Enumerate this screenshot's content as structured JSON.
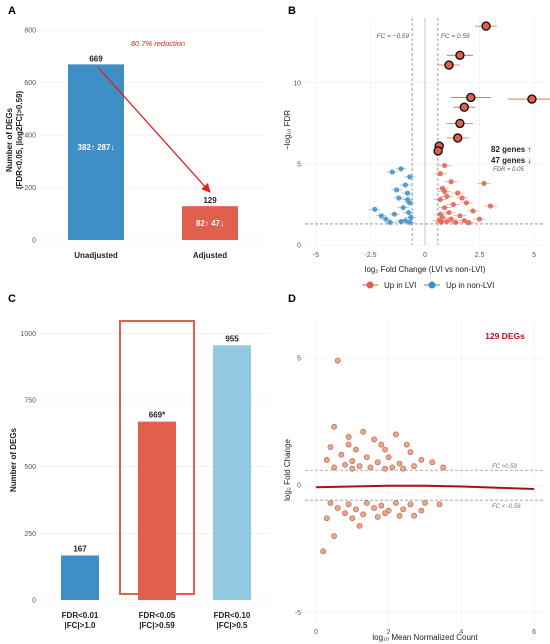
{
  "chart_data": [
    {
      "panel": "A",
      "type": "bar",
      "ylabel": "Number of DEGs",
      "ylabel2": "(FDR<0.05, |log2FC|>0.59)",
      "ylim": [
        0,
        800
      ],
      "yticks": [
        "0",
        "200",
        "400",
        "600",
        "800"
      ],
      "categories": [
        "Unadjusted",
        "Adjusted"
      ],
      "values": [
        669,
        129
      ],
      "value_labels": [
        "669",
        "129"
      ],
      "split_labels": [
        "382↑ 287↓",
        "82↑ 47↓"
      ],
      "colors": [
        "#3f8fc6",
        "#e0604d"
      ],
      "annotation": "80.7% reduction",
      "grid": true
    },
    {
      "panel": "B",
      "type": "scatter",
      "xlabel": "log₂ Fold Change (LVI vs non-LVI)",
      "ylabel": "−log₁₀ FDR",
      "xlim": [
        -5.5,
        5.5
      ],
      "ylim": [
        0,
        14
      ],
      "xticks": [
        "-5",
        "-2.5",
        "0",
        "2.5",
        "5"
      ],
      "yticks": [
        "0",
        "5",
        "10"
      ],
      "fc_label_left": "FC = −0.59",
      "fc_label_right": "FC = 0.59",
      "fdr_label": "FDR = 0.05",
      "up_count": "82 genes ↑",
      "down_count": "47 genes ↓",
      "legend": [
        "Up in LVI",
        "Up in non-LVI"
      ],
      "legend_position": "bottom",
      "colors": {
        "up": "#e0604d",
        "down": "#3f8fc6"
      },
      "top_points": [
        {
          "x": 2.8,
          "y": 13.5,
          "xerr": 0.5
        },
        {
          "x": 1.6,
          "y": 11.7,
          "xerr": 0.6
        },
        {
          "x": 1.1,
          "y": 11.1,
          "xerr": 0.5
        },
        {
          "x": 4.9,
          "y": 9.0,
          "xerr": 1.1
        },
        {
          "x": 2.1,
          "y": 9.1,
          "xerr": 0.9
        },
        {
          "x": 1.8,
          "y": 8.5,
          "xerr": 0.5
        },
        {
          "x": 1.6,
          "y": 7.5,
          "xerr": 0.6
        },
        {
          "x": 1.5,
          "y": 6.6,
          "xerr": 0.5
        },
        {
          "x": 0.65,
          "y": 6.1,
          "xerr": 0.2
        },
        {
          "x": 0.6,
          "y": 5.8,
          "xerr": 0.2
        }
      ],
      "up_points": [
        {
          "x": 2.7,
          "y": 3.8
        },
        {
          "x": 0.9,
          "y": 4.9
        },
        {
          "x": 0.7,
          "y": 4.4
        },
        {
          "x": 1.2,
          "y": 3.9
        },
        {
          "x": 0.8,
          "y": 3.5
        },
        {
          "x": 1.5,
          "y": 3.2
        },
        {
          "x": 1.0,
          "y": 3.0
        },
        {
          "x": 0.7,
          "y": 2.8
        },
        {
          "x": 1.9,
          "y": 2.6
        },
        {
          "x": 1.3,
          "y": 2.5
        },
        {
          "x": 0.9,
          "y": 2.3
        },
        {
          "x": 2.2,
          "y": 2.1
        },
        {
          "x": 1.1,
          "y": 2.0
        },
        {
          "x": 0.7,
          "y": 1.9
        },
        {
          "x": 1.6,
          "y": 1.8
        },
        {
          "x": 0.8,
          "y": 1.7
        },
        {
          "x": 2.5,
          "y": 1.6
        },
        {
          "x": 1.2,
          "y": 1.6
        },
        {
          "x": 0.65,
          "y": 1.5
        },
        {
          "x": 1.8,
          "y": 1.5
        },
        {
          "x": 1.0,
          "y": 1.45
        },
        {
          "x": 1.4,
          "y": 1.4
        },
        {
          "x": 0.75,
          "y": 1.4
        },
        {
          "x": 2.0,
          "y": 1.38
        },
        {
          "x": 3.0,
          "y": 2.4
        },
        {
          "x": 0.9,
          "y": 3.3
        },
        {
          "x": 1.7,
          "y": 2.9
        }
      ],
      "down_points": [
        {
          "x": -1.1,
          "y": 4.7
        },
        {
          "x": -0.7,
          "y": 4.2
        },
        {
          "x": -1.5,
          "y": 4.5
        },
        {
          "x": -0.9,
          "y": 3.7
        },
        {
          "x": -0.8,
          "y": 3.2
        },
        {
          "x": -1.2,
          "y": 2.9
        },
        {
          "x": -0.7,
          "y": 2.6
        },
        {
          "x": -1.0,
          "y": 2.3
        },
        {
          "x": -2.3,
          "y": 2.2
        },
        {
          "x": -0.75,
          "y": 2.0
        },
        {
          "x": -1.4,
          "y": 1.9
        },
        {
          "x": -0.65,
          "y": 1.7
        },
        {
          "x": -1.8,
          "y": 1.6
        },
        {
          "x": -0.9,
          "y": 1.5
        },
        {
          "x": -1.1,
          "y": 1.45
        },
        {
          "x": -0.7,
          "y": 1.4
        },
        {
          "x": -1.6,
          "y": 1.4
        },
        {
          "x": -0.8,
          "y": 2.8
        },
        {
          "x": -1.3,
          "y": 3.4
        },
        {
          "x": -2.0,
          "y": 1.8
        }
      ]
    },
    {
      "panel": "C",
      "type": "bar",
      "ylabel": "Number of DEGs",
      "ylim": [
        0,
        1050
      ],
      "yticks": [
        "0",
        "250",
        "500",
        "750",
        "1000"
      ],
      "categories": [
        "FDR<0.01",
        "FDR<0.05",
        "FDR<0.10"
      ],
      "categories_line2": [
        "|FC|>1.0",
        "|FC|>0.59",
        "|FC|>0.5"
      ],
      "values": [
        167,
        669,
        955
      ],
      "value_labels": [
        "167",
        "669*",
        "955"
      ],
      "colors": [
        "#3f8fc6",
        "#e0604d",
        "#92c8e0"
      ],
      "highlight": "FDR<0.05",
      "grid": true
    },
    {
      "panel": "D",
      "type": "scatter",
      "xlabel": "log₁₀ Mean Normalized Count",
      "ylabel": "log₂ Fold Change",
      "xlim": [
        -0.3,
        6.3
      ],
      "ylim": [
        -5.5,
        6.5
      ],
      "xticks": [
        "0",
        "2",
        "4",
        "6"
      ],
      "yticks": [
        "-5",
        "0",
        "5"
      ],
      "annotation": "129 DEGs",
      "fc_label_pos": "FC >0.59",
      "fc_label_neg": "FC < -0.59",
      "points": [
        {
          "x": 0.6,
          "y": 4.9
        },
        {
          "x": 0.5,
          "y": 2.3
        },
        {
          "x": 1.3,
          "y": 2.1
        },
        {
          "x": 0.9,
          "y": 1.9
        },
        {
          "x": 1.6,
          "y": 1.8
        },
        {
          "x": 2.2,
          "y": 2.0
        },
        {
          "x": 0.4,
          "y": 1.5
        },
        {
          "x": 1.1,
          "y": 1.4
        },
        {
          "x": 1.9,
          "y": 1.4
        },
        {
          "x": 2.6,
          "y": 1.3
        },
        {
          "x": 0.7,
          "y": 1.2
        },
        {
          "x": 1.4,
          "y": 1.1
        },
        {
          "x": 2.0,
          "y": 1.1
        },
        {
          "x": 2.9,
          "y": 1.0
        },
        {
          "x": 0.3,
          "y": 1.0
        },
        {
          "x": 1.0,
          "y": 0.95
        },
        {
          "x": 1.7,
          "y": 0.9
        },
        {
          "x": 2.3,
          "y": 0.85
        },
        {
          "x": 3.2,
          "y": 0.9
        },
        {
          "x": 0.8,
          "y": 0.8
        },
        {
          "x": 1.2,
          "y": 0.75
        },
        {
          "x": 1.5,
          "y": 0.7
        },
        {
          "x": 2.1,
          "y": 0.7
        },
        {
          "x": 2.7,
          "y": 0.75
        },
        {
          "x": 0.5,
          "y": 0.7
        },
        {
          "x": 1.9,
          "y": 0.65
        },
        {
          "x": 3.5,
          "y": 0.7
        },
        {
          "x": 1.0,
          "y": 0.65
        },
        {
          "x": 2.4,
          "y": 0.65
        },
        {
          "x": 0.9,
          "y": 1.6
        },
        {
          "x": 1.8,
          "y": 1.6
        },
        {
          "x": 2.5,
          "y": 1.6
        },
        {
          "x": 0.4,
          "y": -0.7
        },
        {
          "x": 0.9,
          "y": -0.75
        },
        {
          "x": 1.4,
          "y": -0.7
        },
        {
          "x": 1.8,
          "y": -0.8
        },
        {
          "x": 2.2,
          "y": -0.7
        },
        {
          "x": 2.6,
          "y": -0.75
        },
        {
          "x": 3.0,
          "y": -0.7
        },
        {
          "x": 3.4,
          "y": -0.75
        },
        {
          "x": 0.6,
          "y": -0.9
        },
        {
          "x": 1.1,
          "y": -0.95
        },
        {
          "x": 1.6,
          "y": -0.9
        },
        {
          "x": 2.0,
          "y": -1.0
        },
        {
          "x": 2.4,
          "y": -0.95
        },
        {
          "x": 2.9,
          "y": -1.0
        },
        {
          "x": 0.8,
          "y": -1.1
        },
        {
          "x": 1.3,
          "y": -1.15
        },
        {
          "x": 1.9,
          "y": -1.1
        },
        {
          "x": 2.3,
          "y": -1.2
        },
        {
          "x": 0.3,
          "y": -1.3
        },
        {
          "x": 1.0,
          "y": -1.3
        },
        {
          "x": 1.7,
          "y": -1.25
        },
        {
          "x": 2.7,
          "y": -1.2
        },
        {
          "x": 0.5,
          "y": -2.0
        },
        {
          "x": 0.2,
          "y": -2.6
        },
        {
          "x": 1.2,
          "y": -1.6
        }
      ],
      "fit_line": [
        {
          "x": 0.0,
          "y": -0.08
        },
        {
          "x": 1.0,
          "y": -0.05
        },
        {
          "x": 2.0,
          "y": -0.02
        },
        {
          "x": 3.0,
          "y": -0.02
        },
        {
          "x": 4.0,
          "y": -0.05
        },
        {
          "x": 5.0,
          "y": -0.1
        },
        {
          "x": 6.0,
          "y": -0.15
        }
      ]
    }
  ]
}
